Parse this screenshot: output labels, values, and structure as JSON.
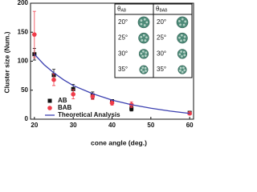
{
  "chart_data": {
    "type": "scatter",
    "x_label": "cone angle (deg.)",
    "y_label": "Cluster size (Num.)",
    "xlim": [
      19,
      61
    ],
    "xticks": [
      20,
      30,
      40,
      50,
      60
    ],
    "ylim": [
      0,
      200
    ],
    "yticks": [
      0,
      50,
      100,
      150,
      200
    ],
    "legend": "lower left",
    "series": [
      {
        "name": "AB",
        "type": "scatter",
        "marker": "square",
        "color": "#111111",
        "x": [
          20,
          25,
          30,
          35,
          40,
          45,
          60
        ],
        "values": [
          112,
          76,
          52,
          41,
          31,
          18,
          11
        ],
        "errors": [
          10,
          10,
          8,
          6,
          3,
          4,
          2
        ]
      },
      {
        "name": "BAB",
        "type": "scatter",
        "marker": "circle",
        "color": "#f03c4a",
        "x": [
          20,
          25,
          30,
          35,
          40,
          45,
          60
        ],
        "values": [
          146,
          68,
          43,
          39,
          28,
          25,
          10
        ],
        "errors": [
          40,
          10,
          8,
          5,
          4,
          5,
          2
        ]
      },
      {
        "name": "Theoretical Analysis",
        "type": "line",
        "color": "#3a3fb0",
        "x": [
          20,
          22.5,
          25,
          27.5,
          30,
          35,
          40,
          45,
          50,
          55,
          60
        ],
        "values": [
          112,
          94,
          80,
          68,
          58,
          44,
          33,
          25,
          19,
          14,
          10
        ]
      }
    ],
    "inset": {
      "headers": [
        {
          "symbol": "θ",
          "subscript": "AB"
        },
        {
          "symbol": "θ",
          "subscript": "BAB"
        }
      ],
      "rows": [
        "20°",
        "25°",
        "30°",
        "35°"
      ]
    }
  }
}
